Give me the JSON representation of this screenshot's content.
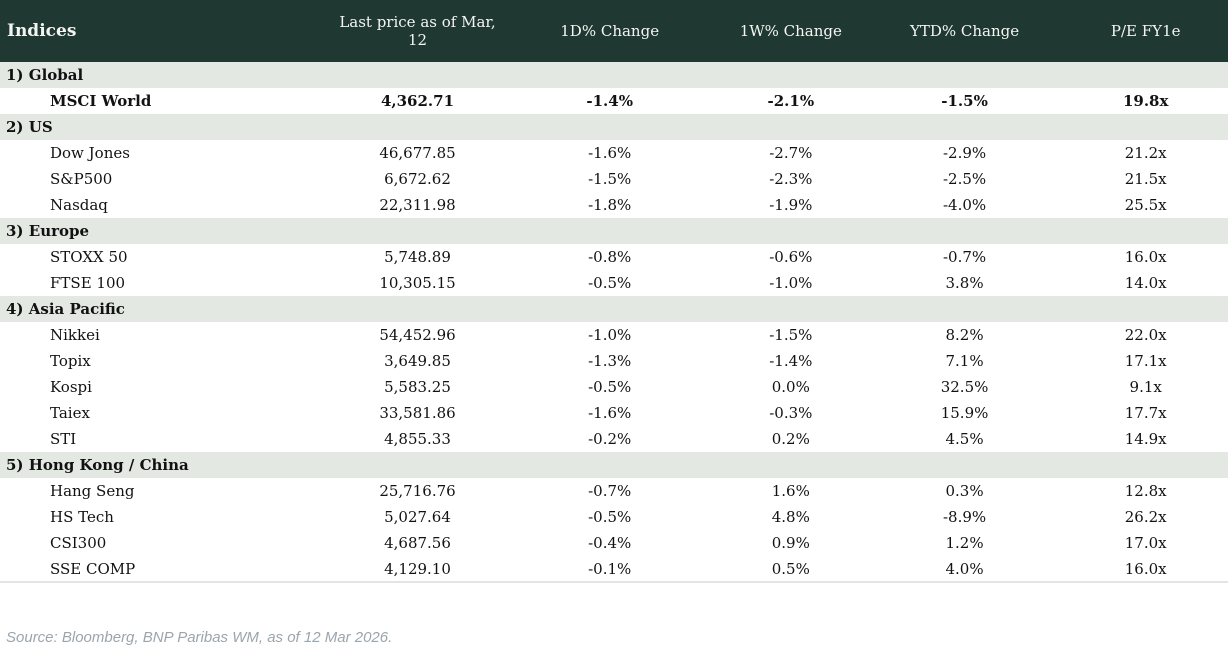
{
  "colors": {
    "header_bg": "#203832",
    "section_bg": "#e4e8e3",
    "negative": "#c00000",
    "positive": "#169440",
    "source_text": "#9ba5ad"
  },
  "table": {
    "columns": [
      "Indices",
      "Last price as of Mar, 12",
      "1D% Change",
      "1W% Change",
      "YTD% Change",
      "P/E FY1e"
    ],
    "sections": [
      {
        "label": "1) Global",
        "rows": [
          {
            "name": "MSCI World",
            "bold": true,
            "price": "4,362.71",
            "changes": [
              {
                "v": "-1.4%",
                "c": "neg"
              },
              {
                "v": "-2.1%",
                "c": "neg"
              },
              {
                "v": "-1.5%",
                "c": "neg"
              }
            ],
            "pe": "19.8x"
          }
        ]
      },
      {
        "label": "2) US",
        "rows": [
          {
            "name": "Dow Jones",
            "bold": false,
            "price": "46,677.85",
            "changes": [
              {
                "v": "-1.6%",
                "c": "neg"
              },
              {
                "v": "-2.7%",
                "c": "neg"
              },
              {
                "v": "-2.9%",
                "c": "neg"
              }
            ],
            "pe": "21.2x"
          },
          {
            "name": "S&P500",
            "bold": false,
            "price": "6,672.62",
            "changes": [
              {
                "v": "-1.5%",
                "c": "neg"
              },
              {
                "v": "-2.3%",
                "c": "neg"
              },
              {
                "v": "-2.5%",
                "c": "neg"
              }
            ],
            "pe": "21.5x"
          },
          {
            "name": "Nasdaq",
            "bold": false,
            "price": "22,311.98",
            "changes": [
              {
                "v": "-1.8%",
                "c": "neg"
              },
              {
                "v": "-1.9%",
                "c": "neg"
              },
              {
                "v": "-4.0%",
                "c": "neg"
              }
            ],
            "pe": "25.5x"
          }
        ]
      },
      {
        "label": "3) Europe",
        "rows": [
          {
            "name": "STOXX 50",
            "bold": false,
            "price": "5,748.89",
            "changes": [
              {
                "v": "-0.8%",
                "c": "neg"
              },
              {
                "v": "-0.6%",
                "c": "neg"
              },
              {
                "v": "-0.7%",
                "c": "neg"
              }
            ],
            "pe": "16.0x"
          },
          {
            "name": "FTSE 100",
            "bold": false,
            "price": "10,305.15",
            "changes": [
              {
                "v": "-0.5%",
                "c": "neg"
              },
              {
                "v": "-1.0%",
                "c": "neg"
              },
              {
                "v": "3.8%",
                "c": "pos"
              }
            ],
            "pe": "14.0x"
          }
        ]
      },
      {
        "label": "4) Asia Pacific",
        "rows": [
          {
            "name": "Nikkei",
            "bold": false,
            "price": "54,452.96",
            "changes": [
              {
                "v": "-1.0%",
                "c": "neg"
              },
              {
                "v": "-1.5%",
                "c": "neg"
              },
              {
                "v": "8.2%",
                "c": "pos"
              }
            ],
            "pe": "22.0x"
          },
          {
            "name": "Topix",
            "bold": false,
            "price": "3,649.85",
            "changes": [
              {
                "v": "-1.3%",
                "c": "neg"
              },
              {
                "v": "-1.4%",
                "c": "neg"
              },
              {
                "v": "7.1%",
                "c": "pos"
              }
            ],
            "pe": "17.1x"
          },
          {
            "name": "Kospi",
            "bold": false,
            "price": "5,583.25",
            "changes": [
              {
                "v": "-0.5%",
                "c": "neg"
              },
              {
                "v": "0.0%",
                "c": "neg"
              },
              {
                "v": "32.5%",
                "c": "pos"
              }
            ],
            "pe": "9.1x"
          },
          {
            "name": "Taiex",
            "bold": false,
            "price": "33,581.86",
            "changes": [
              {
                "v": "-1.6%",
                "c": "neg"
              },
              {
                "v": "-0.3%",
                "c": "neg"
              },
              {
                "v": "15.9%",
                "c": "pos"
              }
            ],
            "pe": "17.7x"
          },
          {
            "name": "STI",
            "bold": false,
            "price": "4,855.33",
            "changes": [
              {
                "v": "-0.2%",
                "c": "neg"
              },
              {
                "v": "0.2%",
                "c": "pos"
              },
              {
                "v": "4.5%",
                "c": "pos"
              }
            ],
            "pe": "14.9x"
          }
        ]
      },
      {
        "label": "5) Hong Kong / China",
        "rows": [
          {
            "name": "Hang Seng",
            "bold": false,
            "price": "25,716.76",
            "changes": [
              {
                "v": "-0.7%",
                "c": "neg"
              },
              {
                "v": "1.6%",
                "c": "pos"
              },
              {
                "v": "0.3%",
                "c": "pos"
              }
            ],
            "pe": "12.8x"
          },
          {
            "name": "HS Tech",
            "bold": false,
            "price": "5,027.64",
            "changes": [
              {
                "v": "-0.5%",
                "c": "neg"
              },
              {
                "v": "4.8%",
                "c": "pos"
              },
              {
                "v": "-8.9%",
                "c": "neg"
              }
            ],
            "pe": "26.2x"
          },
          {
            "name": "CSI300",
            "bold": false,
            "price": "4,687.56",
            "changes": [
              {
                "v": "-0.4%",
                "c": "neg"
              },
              {
                "v": "0.9%",
                "c": "pos"
              },
              {
                "v": "1.2%",
                "c": "pos"
              }
            ],
            "pe": "17.0x"
          },
          {
            "name": "SSE COMP",
            "bold": false,
            "price": "4,129.10",
            "changes": [
              {
                "v": "-0.1%",
                "c": "neg"
              },
              {
                "v": "0.5%",
                "c": "pos"
              },
              {
                "v": "4.0%",
                "c": "pos"
              }
            ],
            "pe": "16.0x"
          }
        ]
      }
    ]
  },
  "footer": {
    "source": "Source: Bloomberg, BNP Paribas WM, as of 12 Mar 2026."
  }
}
